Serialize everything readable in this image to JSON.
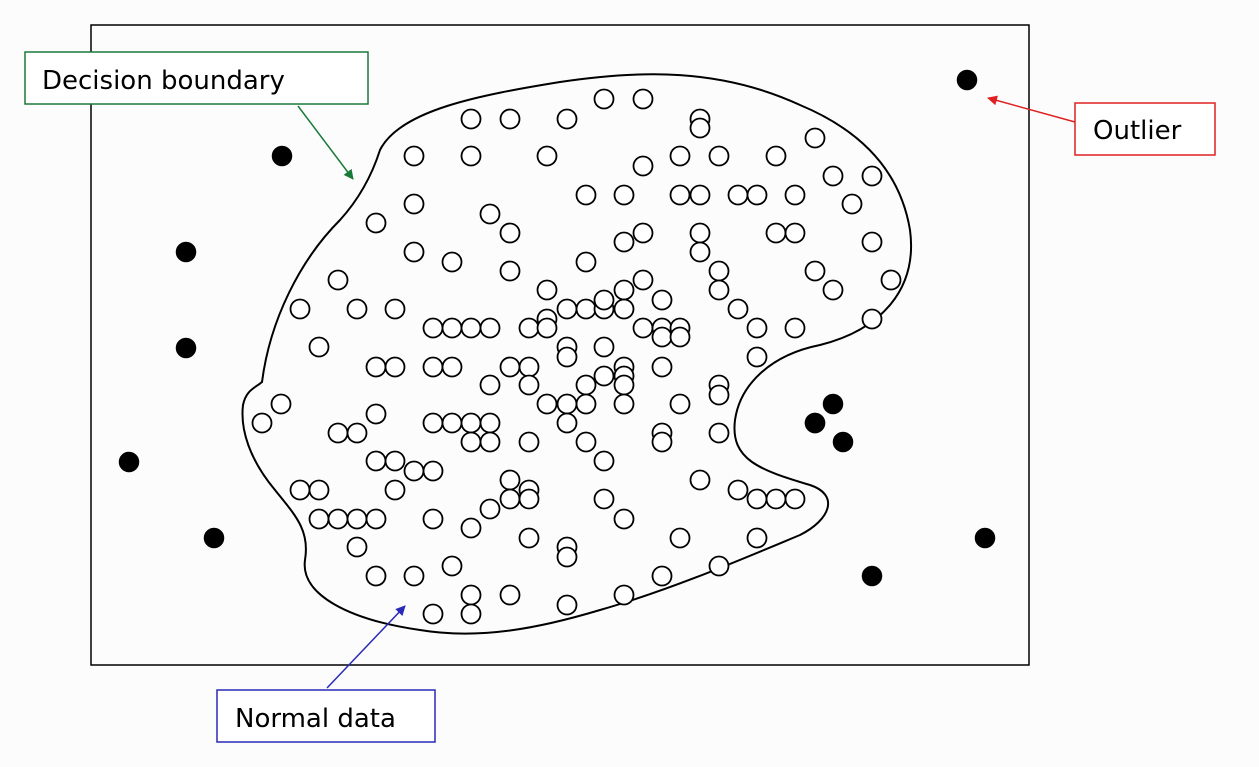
{
  "labels": {
    "decision_boundary": "Decision boundary",
    "outlier": "Outlier",
    "normal_data": "Normal data"
  },
  "colors": {
    "decision_boundary_callout": "#1a7a3a",
    "outlier_callout": "#e02020",
    "normal_data_callout": "#2a2ab8",
    "boundary_line": "#000000",
    "point_fill_outlier": "#000000",
    "point_fill_normal": "#ffffff"
  },
  "point_counts": {
    "outliers": 12,
    "normal": 196
  }
}
